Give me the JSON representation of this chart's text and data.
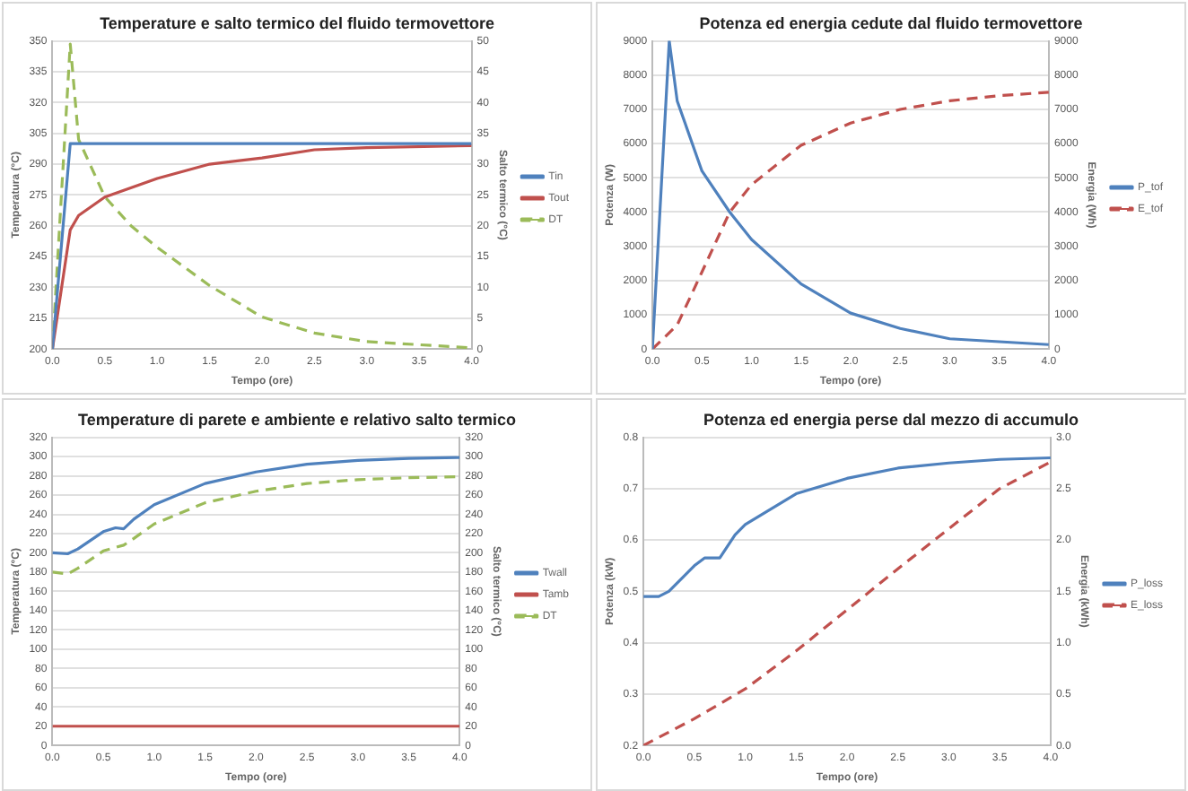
{
  "chart_data": [
    {
      "type": "line",
      "title": "Temperature e salto termico del fluido termovettore",
      "xlabel": "Tempo (ore)",
      "ylabel": "Temperatura (°C)",
      "y2label": "Salto termico (°C)",
      "xlim": [
        0,
        4
      ],
      "xticks": [
        {
          "value": 0,
          "label": "0.0"
        },
        {
          "value": 0.5,
          "label": "0.5"
        },
        {
          "value": 1,
          "label": "1.0"
        },
        {
          "value": 1.5,
          "label": "1.5"
        },
        {
          "value": 2,
          "label": "2.0"
        },
        {
          "value": 2.5,
          "label": "2.5"
        },
        {
          "value": 3,
          "label": "3.0"
        },
        {
          "value": 3.5,
          "label": "3.5"
        },
        {
          "value": 4,
          "label": "4.0"
        }
      ],
      "ylim": [
        200,
        350
      ],
      "yticks": [
        200,
        215,
        230,
        245,
        260,
        275,
        290,
        305,
        320,
        335,
        350
      ],
      "y2lim": [
        0,
        50
      ],
      "y2ticks": [
        0,
        5,
        10,
        15,
        20,
        25,
        30,
        35,
        40,
        45,
        50
      ],
      "grid": "y",
      "legend": "right",
      "marker": "none",
      "series": [
        {
          "name": "Tin",
          "color": "#4f81bd",
          "line_style": "solid",
          "x": [
            0,
            0.17,
            4
          ],
          "values": [
            200,
            300,
            300
          ]
        },
        {
          "name": "Tout",
          "color": "#c0504d",
          "line_style": "solid",
          "x": [
            0,
            0.17,
            0.25,
            0.5,
            1,
            1.5,
            2,
            2.5,
            3,
            4
          ],
          "values": [
            200,
            258,
            265,
            274,
            283,
            290,
            293,
            297,
            298,
            299
          ]
        },
        {
          "name": "DT",
          "color": "#9bbb59",
          "line_style": "dashed",
          "axis": "y2",
          "x": [
            0,
            0.17,
            0.25,
            0.5,
            0.75,
            1,
            1.5,
            2,
            2.5,
            3,
            4
          ],
          "values": [
            0,
            49.5,
            34,
            24.7,
            20,
            16.5,
            10.3,
            5.2,
            2.6,
            1.2,
            0.2
          ]
        }
      ]
    },
    {
      "type": "line",
      "title": "Potenza ed energia cedute dal fluido termovettore",
      "xlabel": "Tempo (ore)",
      "ylabel": "Potenza (W)",
      "y2label": "Energia (Wh)",
      "xlim": [
        0,
        4
      ],
      "xticks": [
        {
          "value": 0,
          "label": "0.0"
        },
        {
          "value": 0.5,
          "label": "0.5"
        },
        {
          "value": 1,
          "label": "1.0"
        },
        {
          "value": 1.5,
          "label": "1.5"
        },
        {
          "value": 2,
          "label": "2.0"
        },
        {
          "value": 2.5,
          "label": "2.5"
        },
        {
          "value": 3,
          "label": "3.0"
        },
        {
          "value": 3.5,
          "label": "3.5"
        },
        {
          "value": 4,
          "label": "4.0"
        }
      ],
      "ylim": [
        0,
        9000
      ],
      "yticks": [
        0,
        1000,
        2000,
        3000,
        4000,
        5000,
        6000,
        7000,
        8000,
        9000
      ],
      "y2lim": [
        0,
        9000
      ],
      "y2ticks": [
        0,
        1000,
        2000,
        3000,
        4000,
        5000,
        6000,
        7000,
        8000,
        9000
      ],
      "grid": "y",
      "legend": "right",
      "marker": "none",
      "series": [
        {
          "name": "P_tof",
          "color": "#4f81bd",
          "line_style": "solid",
          "x": [
            0,
            0.17,
            0.25,
            0.5,
            0.78,
            1,
            1.5,
            2,
            2.5,
            3,
            4
          ],
          "values": [
            0,
            9000,
            7250,
            5200,
            4000,
            3200,
            1900,
            1050,
            600,
            300,
            130
          ]
        },
        {
          "name": "E_tof",
          "color": "#c0504d",
          "line_style": "dashed",
          "axis": "y2",
          "x": [
            0,
            0.25,
            0.5,
            0.78,
            1,
            1.5,
            2,
            2.5,
            3,
            3.5,
            4
          ],
          "values": [
            0,
            700,
            2250,
            4000,
            4800,
            5950,
            6600,
            7000,
            7250,
            7400,
            7500
          ]
        }
      ]
    },
    {
      "type": "line",
      "title": "Temperature di parete e ambiente e relativo salto termico",
      "xlabel": "Tempo (ore)",
      "ylabel": "Temperatura (°C)",
      "y2label": "Salto termico (°C)",
      "xlim": [
        0,
        4
      ],
      "xticks": [
        {
          "value": 0,
          "label": "0.0"
        },
        {
          "value": 0.5,
          "label": "0.5"
        },
        {
          "value": 1,
          "label": "1.0"
        },
        {
          "value": 1.5,
          "label": "1.5"
        },
        {
          "value": 2,
          "label": "2.0"
        },
        {
          "value": 2.5,
          "label": "2.5"
        },
        {
          "value": 3,
          "label": "3.0"
        },
        {
          "value": 3.5,
          "label": "3.5"
        },
        {
          "value": 4,
          "label": "4.0"
        }
      ],
      "ylim": [
        0,
        320
      ],
      "yticks": [
        0,
        20,
        40,
        60,
        80,
        100,
        120,
        140,
        160,
        180,
        200,
        220,
        240,
        260,
        280,
        300,
        320
      ],
      "y2lim": [
        0,
        320
      ],
      "y2ticks": [
        0,
        20,
        40,
        60,
        80,
        100,
        120,
        140,
        160,
        180,
        200,
        220,
        240,
        260,
        280,
        300,
        320
      ],
      "grid": "y",
      "legend": "right",
      "marker": "none",
      "series": [
        {
          "name": "Twall",
          "color": "#4f81bd",
          "line_style": "solid",
          "x": [
            0,
            0.15,
            0.25,
            0.5,
            0.62,
            0.7,
            0.8,
            1,
            1.5,
            2,
            2.5,
            3,
            3.5,
            4
          ],
          "values": [
            200,
            199,
            204,
            222,
            226,
            225,
            235,
            250,
            272,
            284,
            292,
            296,
            298,
            299
          ]
        },
        {
          "name": "Tamb",
          "color": "#c0504d",
          "line_style": "solid",
          "x": [
            0,
            4
          ],
          "values": [
            20,
            20
          ]
        },
        {
          "name": "DT",
          "color": "#9bbb59",
          "line_style": "dashed",
          "axis": "y2",
          "x": [
            0,
            0.15,
            0.25,
            0.5,
            0.7,
            0.8,
            1,
            1.5,
            2,
            2.5,
            3,
            3.5,
            4
          ],
          "values": [
            180,
            178,
            184,
            202,
            208,
            215,
            230,
            252,
            264,
            272,
            276,
            278,
            279
          ]
        }
      ]
    },
    {
      "type": "line",
      "title": "Potenza ed energia perse dal mezzo di accumulo",
      "xlabel": "Tempo (ore)",
      "ylabel": "Potenza (kW)",
      "y2label": "Energia (kWh)",
      "xlim": [
        0,
        4
      ],
      "xticks": [
        {
          "value": 0,
          "label": "0.0"
        },
        {
          "value": 0.5,
          "label": "0.5"
        },
        {
          "value": 1,
          "label": "1.0"
        },
        {
          "value": 1.5,
          "label": "1.5"
        },
        {
          "value": 2,
          "label": "2.0"
        },
        {
          "value": 2.5,
          "label": "2.5"
        },
        {
          "value": 3,
          "label": "3.0"
        },
        {
          "value": 3.5,
          "label": "3.5"
        },
        {
          "value": 4,
          "label": "4.0"
        }
      ],
      "ylim": [
        0.2,
        0.8
      ],
      "yticks": [
        0.2,
        0.3,
        0.4,
        0.5,
        0.6,
        0.7,
        0.8
      ],
      "y2lim": [
        0,
        3
      ],
      "y2ticks": [
        {
          "value": 0,
          "label": "0.0"
        },
        {
          "value": 0.5,
          "label": "0.5"
        },
        {
          "value": 1,
          "label": "1.0"
        },
        {
          "value": 1.5,
          "label": "1.5"
        },
        {
          "value": 2,
          "label": "2.0"
        },
        {
          "value": 2.5,
          "label": "2.5"
        },
        {
          "value": 3,
          "label": "3.0"
        }
      ],
      "grid": "y",
      "legend": "right",
      "marker": "none",
      "series": [
        {
          "name": "P_loss",
          "color": "#4f81bd",
          "line_style": "solid",
          "x": [
            0,
            0.15,
            0.25,
            0.5,
            0.6,
            0.75,
            0.9,
            1,
            1.5,
            2,
            2.5,
            3,
            3.5,
            4
          ],
          "values": [
            0.49,
            0.49,
            0.5,
            0.55,
            0.565,
            0.565,
            0.61,
            0.63,
            0.69,
            0.72,
            0.74,
            0.75,
            0.757,
            0.76
          ]
        },
        {
          "name": "E_loss",
          "color": "#c0504d",
          "line_style": "dashed",
          "axis": "y2",
          "x": [
            0,
            0.5,
            1,
            1.5,
            2,
            2.5,
            3,
            3.5,
            4
          ],
          "values": [
            0,
            0.26,
            0.55,
            0.92,
            1.32,
            1.72,
            2.11,
            2.5,
            2.76
          ]
        }
      ]
    }
  ]
}
